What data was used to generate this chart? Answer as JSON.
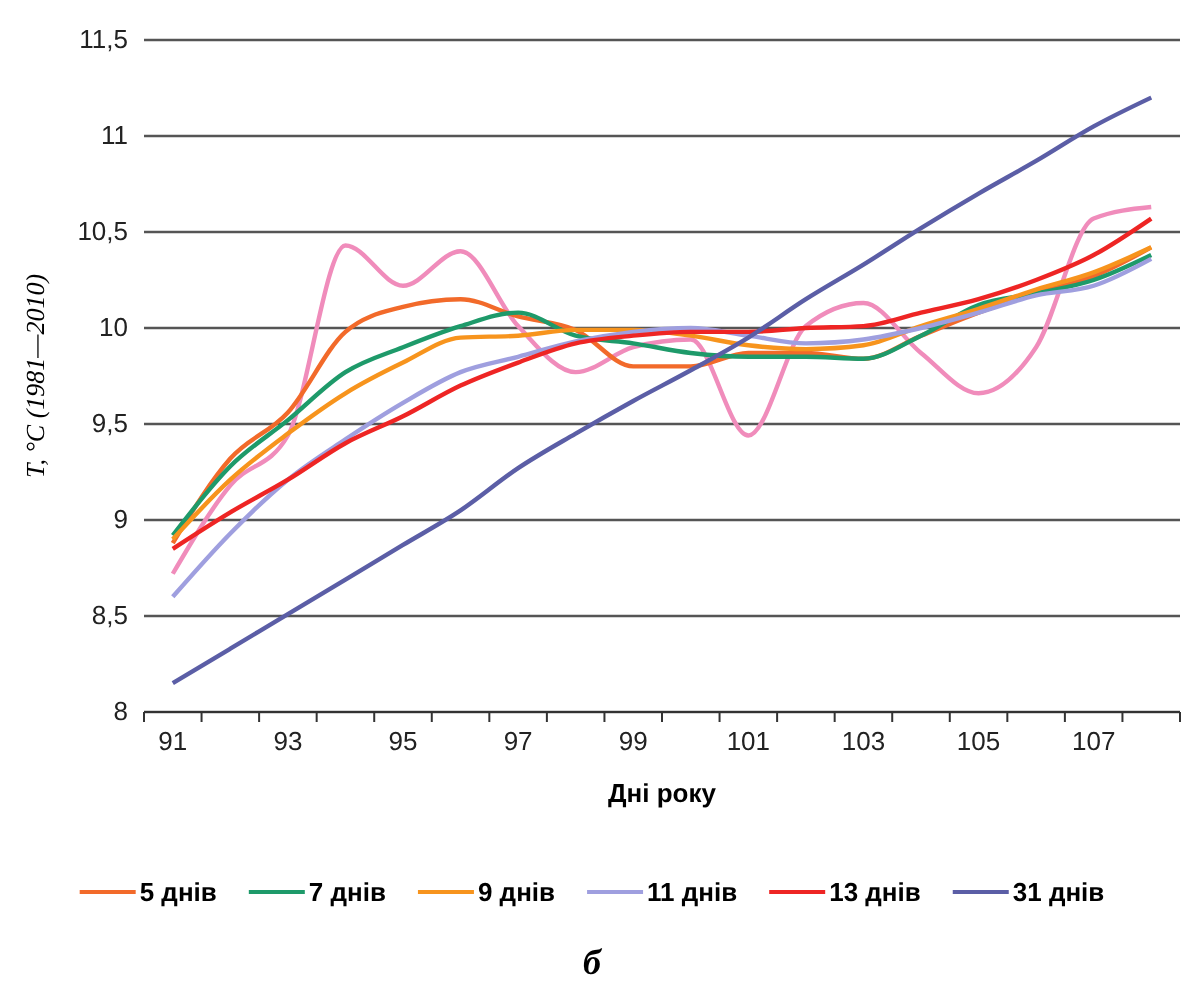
{
  "chart_data": {
    "type": "line",
    "xlabel": "Дні року",
    "ylabel": "T, °C (1981—2010)",
    "categories": [
      "91",
      null,
      "93",
      null,
      "95",
      null,
      "97",
      null,
      "99",
      null,
      "101",
      null,
      "103",
      null,
      "105",
      null,
      "107",
      null
    ],
    "series": [
      {
        "color": "#f08cbb",
        "values": [
          8.72,
          9.18,
          9.44,
          10.43,
          10.22,
          10.4,
          10.01,
          9.77,
          9.9,
          9.94,
          9.44,
          10.01,
          10.13,
          9.87,
          9.66,
          9.9,
          10.57,
          10.63
        ]
      },
      {
        "name": "5 днів",
        "color": "#f26a2a",
        "values": [
          8.88,
          9.32,
          9.56,
          9.98,
          10.11,
          10.15,
          10.06,
          9.99,
          9.8,
          9.8,
          9.87,
          9.87,
          9.84,
          9.96,
          10.08,
          10.18,
          10.27,
          10.42
        ]
      },
      {
        "name": "7 днів",
        "color": "#1e9a6a",
        "values": [
          8.92,
          9.28,
          9.52,
          9.77,
          9.9,
          10.01,
          10.08,
          9.96,
          9.92,
          9.87,
          9.85,
          9.85,
          9.84,
          9.96,
          10.12,
          10.18,
          10.25,
          10.38
        ]
      },
      {
        "name": "9 днів",
        "color": "#f7941d",
        "values": [
          8.9,
          9.21,
          9.45,
          9.66,
          9.82,
          9.95,
          9.96,
          9.99,
          9.99,
          9.96,
          9.91,
          9.89,
          9.91,
          10.01,
          10.1,
          10.2,
          10.29,
          10.42
        ]
      },
      {
        "name": "11 днів",
        "color": "#9f9fdf",
        "values": [
          8.6,
          8.93,
          9.21,
          9.42,
          9.61,
          9.77,
          9.85,
          9.93,
          9.98,
          10.0,
          9.96,
          9.92,
          9.94,
          10.0,
          10.08,
          10.17,
          10.22,
          10.36
        ]
      },
      {
        "name": "13 днів",
        "color": "#ee2524",
        "values": [
          8.85,
          9.04,
          9.21,
          9.4,
          9.54,
          9.7,
          9.82,
          9.92,
          9.96,
          9.98,
          9.98,
          10.0,
          10.01,
          10.08,
          10.15,
          10.25,
          10.38,
          10.57
        ]
      },
      {
        "name": "31 днів",
        "color": "#5b5ea6",
        "values": [
          8.15,
          8.33,
          8.51,
          8.69,
          8.87,
          9.05,
          9.27,
          9.45,
          9.62,
          9.78,
          9.95,
          10.15,
          10.33,
          10.52,
          10.7,
          10.87,
          11.05,
          11.2
        ]
      }
    ],
    "ylim": [
      8,
      11.5
    ],
    "yticks": [
      8,
      {
        "value": 8.5,
        "label": "8,5"
      },
      9,
      {
        "value": 9.5,
        "label": "9,5"
      },
      10,
      {
        "value": 10.5,
        "label": "10,5"
      },
      11,
      {
        "value": 11.5,
        "label": "11,5"
      }
    ],
    "grid": "y",
    "legend": "bottom",
    "marker": "none",
    "line_style": "solid",
    "annotations": [
      "б"
    ]
  }
}
